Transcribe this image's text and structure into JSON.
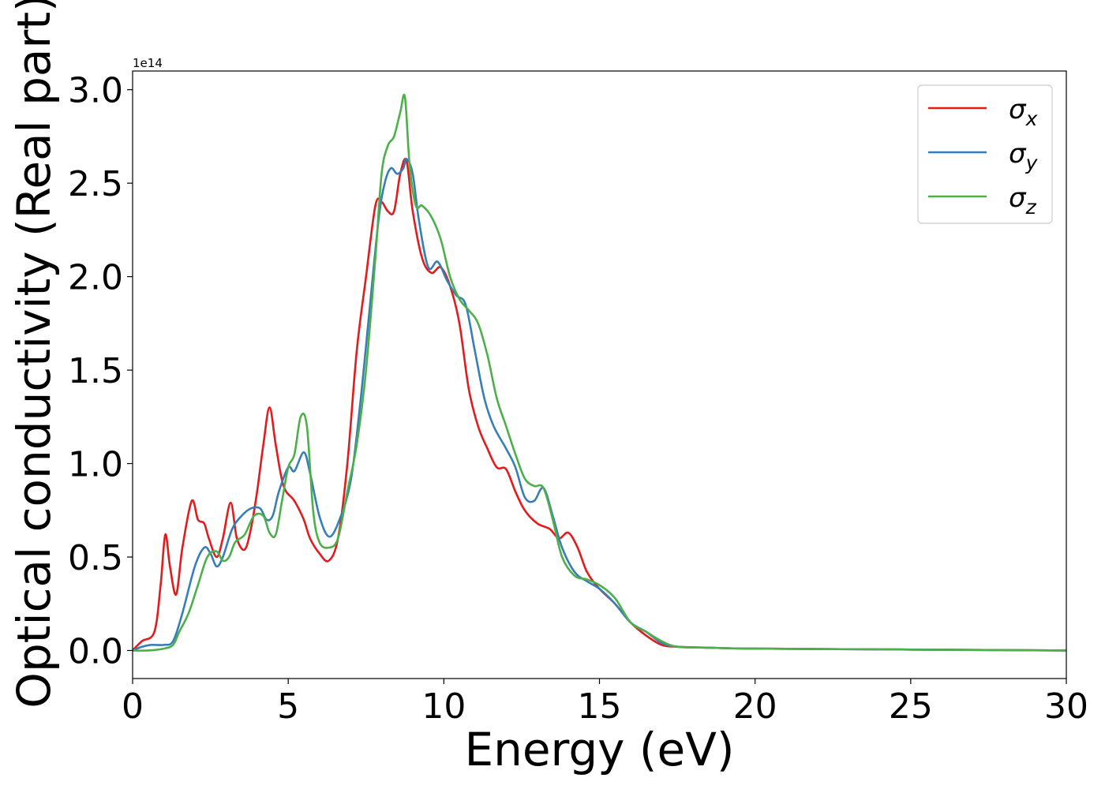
{
  "chart_data": {
    "type": "line",
    "xlabel": "Energy (eV)",
    "ylabel": "Optical conductivity (Real part)",
    "offset_text": "1e14",
    "xlim": [
      0,
      30
    ],
    "ylim": [
      -0.15,
      3.1
    ],
    "y_scale_factor": 100000000000000.0,
    "xticks": [
      0,
      5,
      10,
      15,
      20,
      25,
      30
    ],
    "xtick_labels": [
      "0",
      "5",
      "10",
      "15",
      "20",
      "25",
      "30"
    ],
    "yticks": [
      0.0,
      0.5,
      1.0,
      1.5,
      2.0,
      2.5,
      3.0
    ],
    "ytick_labels": [
      "0.0",
      "0.5",
      "1.0",
      "1.5",
      "2.0",
      "2.5",
      "3.0"
    ],
    "grid": false,
    "legend_position": "top-right",
    "series": [
      {
        "name": "σx",
        "label_main": "σ",
        "label_sub": "x",
        "color": "#e41a1c",
        "x": [
          0,
          0.3,
          0.7,
          0.9,
          1.05,
          1.2,
          1.4,
          1.6,
          1.9,
          2.1,
          2.3,
          2.45,
          2.7,
          2.9,
          3.15,
          3.35,
          3.6,
          3.8,
          4.0,
          4.2,
          4.4,
          4.6,
          4.85,
          5.2,
          5.5,
          5.7,
          6.0,
          6.3,
          6.6,
          6.9,
          7.2,
          7.5,
          7.8,
          8.0,
          8.2,
          8.4,
          8.6,
          8.8,
          9.0,
          9.3,
          9.6,
          9.9,
          10.2,
          10.5,
          10.8,
          11.1,
          11.4,
          11.7,
          12.0,
          12.3,
          12.6,
          13.0,
          13.4,
          13.7,
          14.0,
          14.3,
          14.6,
          15.0,
          15.5,
          16.0,
          16.5,
          17.0,
          17.5,
          18.5,
          20,
          25,
          30
        ],
        "y": [
          0.0,
          0.05,
          0.1,
          0.35,
          0.62,
          0.45,
          0.3,
          0.55,
          0.8,
          0.7,
          0.68,
          0.6,
          0.5,
          0.6,
          0.79,
          0.6,
          0.54,
          0.65,
          0.85,
          1.1,
          1.3,
          1.1,
          0.88,
          0.8,
          0.7,
          0.6,
          0.52,
          0.48,
          0.6,
          1.0,
          1.6,
          2.0,
          2.38,
          2.4,
          2.35,
          2.35,
          2.55,
          2.62,
          2.35,
          2.1,
          2.02,
          2.05,
          1.95,
          1.75,
          1.4,
          1.2,
          1.08,
          0.98,
          0.97,
          0.85,
          0.75,
          0.68,
          0.65,
          0.6,
          0.63,
          0.55,
          0.42,
          0.33,
          0.25,
          0.15,
          0.08,
          0.03,
          0.02,
          0.015,
          0.01,
          0.005,
          0.0
        ]
      },
      {
        "name": "σy",
        "label_main": "σ",
        "label_sub": "y",
        "color": "#377eb8",
        "x": [
          0,
          0.3,
          0.6,
          1.0,
          1.3,
          1.6,
          2.0,
          2.3,
          2.5,
          2.7,
          2.9,
          3.2,
          3.5,
          3.8,
          4.1,
          4.3,
          4.5,
          4.7,
          5.0,
          5.2,
          5.5,
          5.7,
          6.0,
          6.3,
          6.6,
          7.0,
          7.3,
          7.6,
          7.9,
          8.1,
          8.3,
          8.5,
          8.7,
          8.8,
          9.0,
          9.2,
          9.5,
          9.8,
          10.1,
          10.4,
          10.7,
          11.0,
          11.3,
          11.6,
          12.0,
          12.3,
          12.6,
          12.9,
          13.2,
          13.5,
          13.8,
          14.2,
          14.6,
          15.0,
          15.5,
          16.0,
          16.5,
          17.0,
          17.5,
          18.5,
          20,
          25,
          30
        ],
        "y": [
          0.0,
          0.02,
          0.03,
          0.03,
          0.05,
          0.2,
          0.45,
          0.55,
          0.52,
          0.45,
          0.5,
          0.65,
          0.72,
          0.76,
          0.76,
          0.7,
          0.72,
          0.85,
          0.98,
          0.96,
          1.06,
          0.95,
          0.72,
          0.61,
          0.68,
          0.9,
          1.3,
          1.8,
          2.3,
          2.5,
          2.58,
          2.55,
          2.58,
          2.63,
          2.55,
          2.3,
          2.05,
          2.08,
          1.98,
          1.9,
          1.85,
          1.6,
          1.35,
          1.2,
          1.08,
          0.98,
          0.82,
          0.8,
          0.87,
          0.72,
          0.55,
          0.42,
          0.37,
          0.33,
          0.25,
          0.15,
          0.1,
          0.04,
          0.02,
          0.015,
          0.01,
          0.005,
          0.0
        ]
      },
      {
        "name": "σz",
        "label_main": "σ",
        "label_sub": "z",
        "color": "#4daf4a",
        "x": [
          0,
          0.5,
          1.0,
          1.3,
          1.5,
          1.8,
          2.1,
          2.4,
          2.7,
          2.9,
          3.1,
          3.3,
          3.6,
          3.9,
          4.2,
          4.4,
          4.6,
          4.8,
          5.0,
          5.2,
          5.4,
          5.6,
          5.8,
          6.0,
          6.3,
          6.6,
          6.9,
          7.2,
          7.5,
          7.8,
          8.0,
          8.2,
          8.4,
          8.6,
          8.75,
          8.9,
          9.1,
          9.3,
          9.6,
          9.9,
          10.2,
          10.5,
          10.8,
          11.1,
          11.4,
          11.7,
          12.0,
          12.3,
          12.6,
          12.9,
          13.2,
          13.5,
          13.8,
          14.2,
          14.6,
          15.0,
          15.5,
          16.0,
          16.5,
          17.0,
          17.5,
          18.5,
          20,
          25,
          30
        ],
        "y": [
          0.0,
          0.0,
          0.01,
          0.03,
          0.1,
          0.2,
          0.35,
          0.5,
          0.53,
          0.48,
          0.5,
          0.58,
          0.62,
          0.72,
          0.72,
          0.63,
          0.62,
          0.8,
          0.98,
          1.05,
          1.25,
          1.2,
          0.75,
          0.58,
          0.55,
          0.6,
          0.85,
          1.1,
          1.5,
          2.1,
          2.55,
          2.7,
          2.75,
          2.88,
          2.96,
          2.6,
          2.38,
          2.38,
          2.32,
          2.2,
          2.0,
          1.88,
          1.82,
          1.75,
          1.58,
          1.35,
          1.2,
          1.05,
          0.92,
          0.88,
          0.87,
          0.7,
          0.5,
          0.4,
          0.38,
          0.35,
          0.28,
          0.15,
          0.1,
          0.05,
          0.02,
          0.015,
          0.01,
          0.005,
          0.0
        ]
      }
    ]
  }
}
